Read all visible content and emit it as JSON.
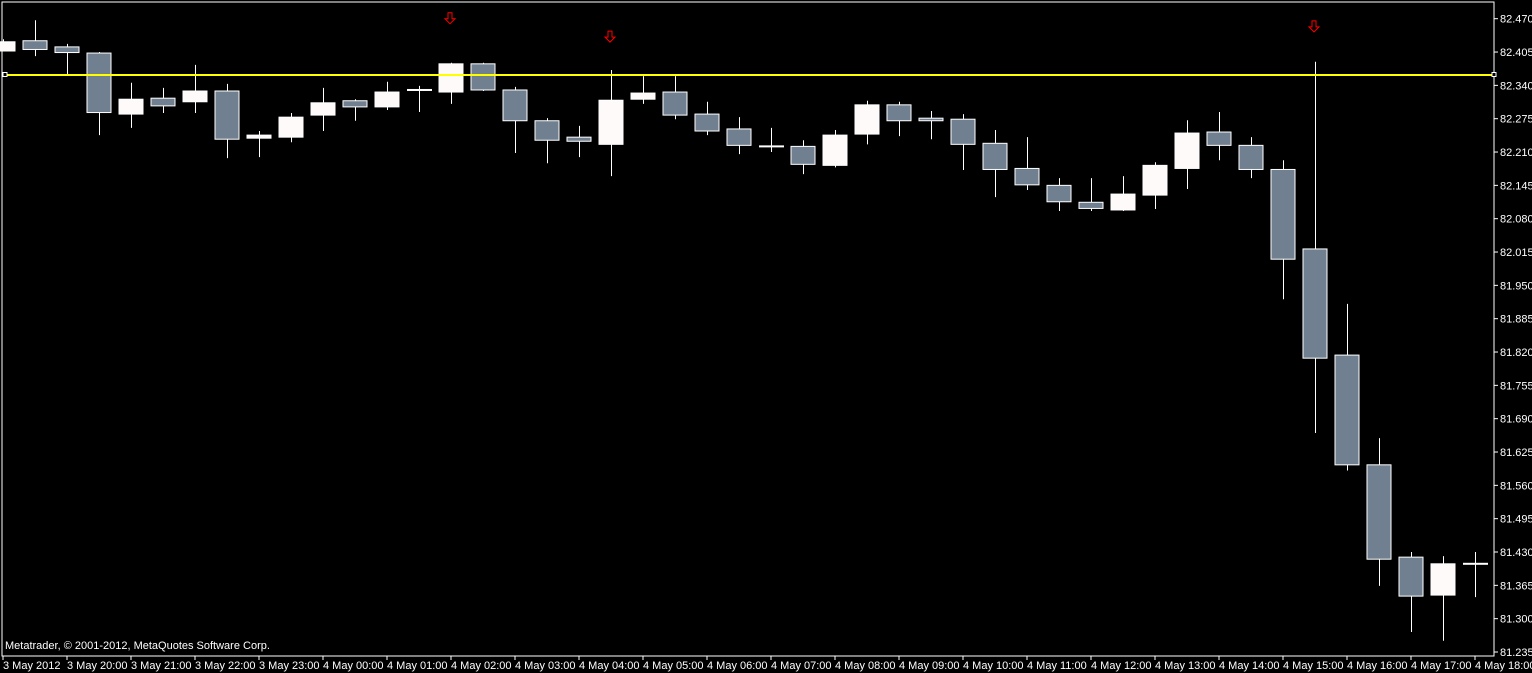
{
  "copyright": "Metatrader, © 2001-2012, MetaQuotes Software Corp.",
  "colors": {
    "background": "#000000",
    "bull_candle": "#fffafa",
    "bear_candle": "#708090",
    "outline": "#ffffff",
    "horizontal_line": "#ffff00",
    "arrow": "#ff0000"
  },
  "chart_data": {
    "type": "candlestick",
    "timeframe_minutes": 30,
    "ylim": [
      81.235,
      82.47
    ],
    "grid": false,
    "legend": "none",
    "y_ticks": [
      "82.470",
      "82.405",
      "82.340",
      "82.275",
      "82.210",
      "82.145",
      "82.080",
      "82.015",
      "81.950",
      "81.885",
      "81.820",
      "81.755",
      "81.690",
      "81.625",
      "81.560",
      "81.495",
      "81.430",
      "81.365",
      "81.300",
      "81.235"
    ],
    "x_ticks": [
      "3 May 2012",
      "3 May 20:00",
      "3 May 21:00",
      "3 May 22:00",
      "3 May 23:00",
      "4 May 00:00",
      "4 May 01:00",
      "4 May 02:00",
      "4 May 03:00",
      "4 May 04:00",
      "4 May 05:00",
      "4 May 06:00",
      "4 May 07:00",
      "4 May 08:00",
      "4 May 09:00",
      "4 May 10:00",
      "4 May 11:00",
      "4 May 12:00",
      "4 May 13:00",
      "4 May 14:00",
      "4 May 15:00",
      "4 May 16:00",
      "4 May 17:00",
      "4 May 18:00"
    ],
    "candles": [
      {
        "time": "3 May 19:00",
        "o": 82.407,
        "h": 82.43,
        "l": 82.407,
        "c": 82.425
      },
      {
        "time": "3 May 19:30",
        "o": 82.427,
        "h": 82.467,
        "l": 82.397,
        "c": 82.41
      },
      {
        "time": "3 May 20:00",
        "o": 82.415,
        "h": 82.421,
        "l": 82.362,
        "c": 82.404
      },
      {
        "time": "3 May 20:30",
        "o": 82.403,
        "h": 82.405,
        "l": 82.243,
        "c": 82.287
      },
      {
        "time": "3 May 21:00",
        "o": 82.284,
        "h": 82.345,
        "l": 82.257,
        "c": 82.313
      },
      {
        "time": "3 May 21:30",
        "o": 82.315,
        "h": 82.335,
        "l": 82.286,
        "c": 82.3
      },
      {
        "time": "3 May 22:00",
        "o": 82.308,
        "h": 82.38,
        "l": 82.286,
        "c": 82.329
      },
      {
        "time": "3 May 22:30",
        "o": 82.329,
        "h": 82.343,
        "l": 82.198,
        "c": 82.235
      },
      {
        "time": "3 May 23:00",
        "o": 82.237,
        "h": 82.251,
        "l": 82.2,
        "c": 82.243
      },
      {
        "time": "3 May 23:30",
        "o": 82.239,
        "h": 82.286,
        "l": 82.229,
        "c": 82.278
      },
      {
        "time": "4 May 00:00",
        "o": 82.282,
        "h": 82.335,
        "l": 82.251,
        "c": 82.306
      },
      {
        "time": "4 May 00:30",
        "o": 82.31,
        "h": 82.313,
        "l": 82.271,
        "c": 82.298
      },
      {
        "time": "4 May 01:00",
        "o": 82.298,
        "h": 82.347,
        "l": 82.292,
        "c": 82.327
      },
      {
        "time": "4 May 01:30",
        "o": 82.331,
        "h": 82.339,
        "l": 82.288,
        "c": 82.331
      },
      {
        "time": "4 May 02:00",
        "o": 82.327,
        "h": 82.384,
        "l": 82.304,
        "c": 82.382
      },
      {
        "time": "4 May 02:30",
        "o": 82.382,
        "h": 82.384,
        "l": 82.329,
        "c": 82.331
      },
      {
        "time": "4 May 03:00",
        "o": 82.331,
        "h": 82.337,
        "l": 82.208,
        "c": 82.271
      },
      {
        "time": "4 May 03:30",
        "o": 82.271,
        "h": 82.276,
        "l": 82.188,
        "c": 82.233
      },
      {
        "time": "4 May 04:00",
        "o": 82.239,
        "h": 82.261,
        "l": 82.2,
        "c": 82.231
      },
      {
        "time": "4 May 04:30",
        "o": 82.225,
        "h": 82.37,
        "l": 82.163,
        "c": 82.311
      },
      {
        "time": "4 May 05:00",
        "o": 82.313,
        "h": 82.358,
        "l": 82.304,
        "c": 82.325
      },
      {
        "time": "4 May 05:30",
        "o": 82.327,
        "h": 82.358,
        "l": 82.274,
        "c": 82.282
      },
      {
        "time": "4 May 06:00",
        "o": 82.284,
        "h": 82.308,
        "l": 82.243,
        "c": 82.251
      },
      {
        "time": "4 May 06:30",
        "o": 82.255,
        "h": 82.278,
        "l": 82.206,
        "c": 82.223
      },
      {
        "time": "4 May 07:00",
        "o": 82.221,
        "h": 82.257,
        "l": 82.21,
        "c": 82.221
      },
      {
        "time": "4 May 07:30",
        "o": 82.221,
        "h": 82.233,
        "l": 82.167,
        "c": 82.186
      },
      {
        "time": "4 May 08:00",
        "o": 82.184,
        "h": 82.253,
        "l": 82.18,
        "c": 82.243
      },
      {
        "time": "4 May 08:30",
        "o": 82.245,
        "h": 82.31,
        "l": 82.225,
        "c": 82.302
      },
      {
        "time": "4 May 09:00",
        "o": 82.302,
        "h": 82.308,
        "l": 82.241,
        "c": 82.271
      },
      {
        "time": "4 May 09:30",
        "o": 82.276,
        "h": 82.29,
        "l": 82.235,
        "c": 82.271
      },
      {
        "time": "4 May 10:00",
        "o": 82.274,
        "h": 82.284,
        "l": 82.175,
        "c": 82.225
      },
      {
        "time": "4 May 10:30",
        "o": 82.227,
        "h": 82.253,
        "l": 82.122,
        "c": 82.176
      },
      {
        "time": "4 May 11:00",
        "o": 82.178,
        "h": 82.239,
        "l": 82.136,
        "c": 82.146
      },
      {
        "time": "4 May 11:30",
        "o": 82.145,
        "h": 82.159,
        "l": 82.095,
        "c": 82.113
      },
      {
        "time": "4 May 12:00",
        "o": 82.112,
        "h": 82.159,
        "l": 82.095,
        "c": 82.1
      },
      {
        "time": "4 May 12:30",
        "o": 82.097,
        "h": 82.163,
        "l": 82.095,
        "c": 82.128
      },
      {
        "time": "4 May 13:00",
        "o": 82.126,
        "h": 82.19,
        "l": 82.099,
        "c": 82.184
      },
      {
        "time": "4 May 13:30",
        "o": 82.178,
        "h": 82.272,
        "l": 82.138,
        "c": 82.247
      },
      {
        "time": "4 May 14:00",
        "o": 82.249,
        "h": 82.288,
        "l": 82.194,
        "c": 82.223
      },
      {
        "time": "4 May 14:30",
        "o": 82.223,
        "h": 82.239,
        "l": 82.159,
        "c": 82.176
      },
      {
        "time": "4 May 15:00",
        "o": 82.176,
        "h": 82.194,
        "l": 81.923,
        "c": 82.001
      },
      {
        "time": "4 May 15:30",
        "o": 82.021,
        "h": 82.386,
        "l": 81.662,
        "c": 81.808
      },
      {
        "time": "4 May 16:00",
        "o": 81.814,
        "h": 81.914,
        "l": 81.589,
        "c": 81.6
      },
      {
        "time": "4 May 16:30",
        "o": 81.6,
        "h": 81.652,
        "l": 81.364,
        "c": 81.416
      },
      {
        "time": "4 May 17:00",
        "o": 81.42,
        "h": 81.43,
        "l": 81.274,
        "c": 81.344
      },
      {
        "time": "4 May 17:30",
        "o": 81.346,
        "h": 81.422,
        "l": 81.257,
        "c": 81.407
      },
      {
        "time": "4 May 18:00",
        "o": 81.407,
        "h": 81.43,
        "l": 81.342,
        "c": 81.407
      }
    ],
    "horizontal_line": {
      "price": 82.36
    },
    "arrows": [
      {
        "time": "4 May 02:00",
        "price": 82.47,
        "direction": "down"
      },
      {
        "time": "4 May 04:30",
        "price": 82.434,
        "direction": "down"
      },
      {
        "time": "4 May 15:30",
        "price": 82.454,
        "direction": "down"
      }
    ]
  }
}
